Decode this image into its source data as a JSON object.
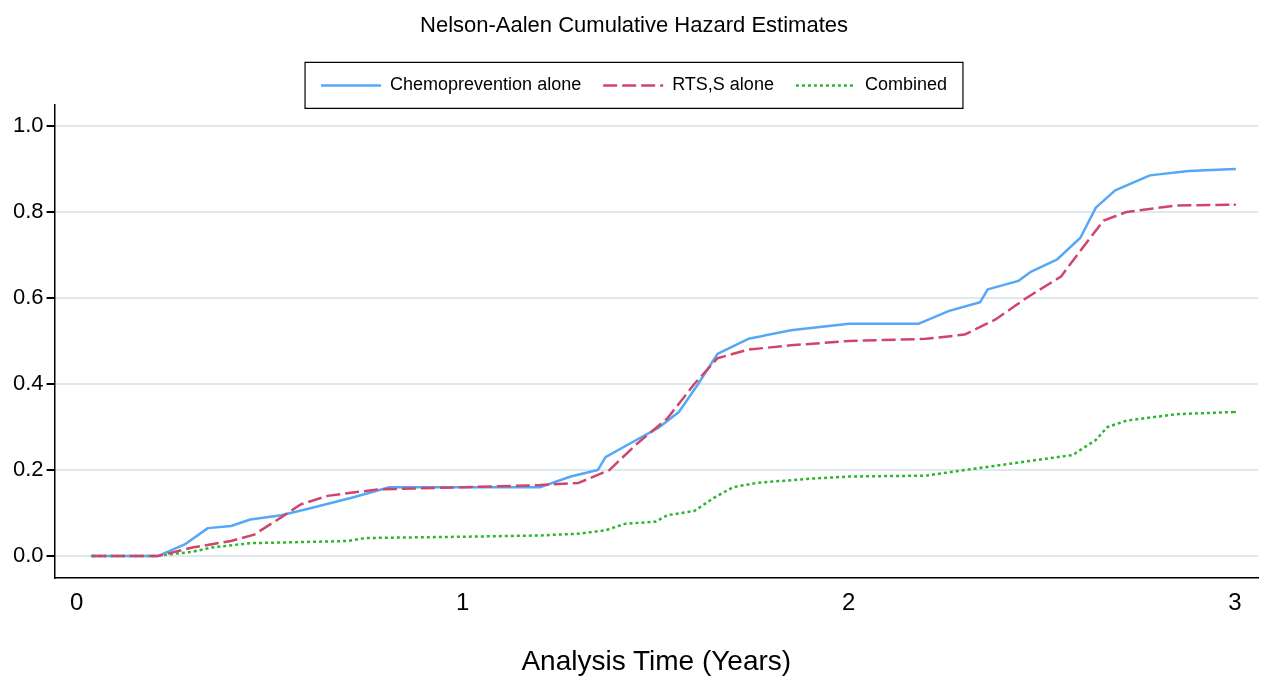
{
  "chart_data": {
    "type": "line",
    "title": "Nelson-Aalen Cumulative Hazard Estimates",
    "xlabel": "Analysis Time (Years)",
    "xlim": [
      -0.057,
      3.06
    ],
    "xticks": [
      0,
      1,
      2,
      3
    ],
    "ylim": [
      -0.05,
      1.05
    ],
    "yticks": [
      {
        "value": 0,
        "label": "0.0"
      },
      {
        "value": 0.2,
        "label": "0.2"
      },
      {
        "value": 0.4,
        "label": "0.4"
      },
      {
        "value": 0.6,
        "label": "0.6"
      },
      {
        "value": 0.8,
        "label": "0.8"
      },
      {
        "value": 1,
        "label": "1.0"
      }
    ],
    "grid": "y",
    "legend": "top",
    "marker": "none",
    "series": [
      {
        "name": "Chemoprevention alone",
        "color": "#55a8f8",
        "line_style": "solid",
        "x": [
          0.04,
          0.21,
          0.28,
          0.34,
          0.4,
          0.45,
          0.53,
          0.6,
          0.71,
          0.81,
          1.0,
          1.2,
          1.28,
          1.35,
          1.37,
          1.43,
          1.51,
          1.56,
          1.61,
          1.66,
          1.74,
          1.85,
          2.0,
          2.18,
          2.26,
          2.34,
          2.36,
          2.44,
          2.47,
          2.54,
          2.6,
          2.64,
          2.69,
          2.78,
          2.88,
          3.0
        ],
        "values": [
          0,
          0,
          0.027,
          0.065,
          0.07,
          0.085,
          0.095,
          0.11,
          0.135,
          0.16,
          0.16,
          0.16,
          0.185,
          0.2,
          0.23,
          0.26,
          0.3,
          0.335,
          0.4,
          0.47,
          0.505,
          0.525,
          0.54,
          0.54,
          0.57,
          0.59,
          0.62,
          0.64,
          0.66,
          0.69,
          0.74,
          0.81,
          0.85,
          0.885,
          0.895,
          0.9
        ]
      },
      {
        "name": "RTS,S alone",
        "color": "#d0456a",
        "line_style": "dashed",
        "x": [
          0.04,
          0.21,
          0.3,
          0.4,
          0.46,
          0.53,
          0.58,
          0.65,
          0.78,
          1.0,
          1.2,
          1.3,
          1.38,
          1.45,
          1.53,
          1.6,
          1.66,
          1.74,
          1.85,
          2.0,
          2.2,
          2.3,
          2.38,
          2.46,
          2.55,
          2.6,
          2.66,
          2.72,
          2.85,
          3.0
        ],
        "values": [
          0,
          0,
          0.02,
          0.035,
          0.05,
          0.09,
          0.12,
          0.14,
          0.155,
          0.16,
          0.165,
          0.17,
          0.2,
          0.26,
          0.32,
          0.4,
          0.46,
          0.48,
          0.49,
          0.5,
          0.505,
          0.515,
          0.55,
          0.6,
          0.65,
          0.71,
          0.78,
          0.8,
          0.815,
          0.817
        ]
      },
      {
        "name": "Combined",
        "color": "#2db52d",
        "line_style": "dotted",
        "x": [
          0.04,
          0.2,
          0.3,
          0.35,
          0.45,
          0.7,
          0.75,
          1.0,
          1.2,
          1.3,
          1.37,
          1.42,
          1.5,
          1.53,
          1.6,
          1.65,
          1.7,
          1.76,
          1.9,
          2.0,
          2.2,
          2.3,
          2.38,
          2.5,
          2.58,
          2.64,
          2.67,
          2.72,
          2.85,
          3.0
        ],
        "values": [
          0,
          0,
          0.01,
          0.02,
          0.03,
          0.035,
          0.042,
          0.045,
          0.048,
          0.052,
          0.06,
          0.075,
          0.08,
          0.095,
          0.105,
          0.135,
          0.16,
          0.17,
          0.18,
          0.185,
          0.187,
          0.2,
          0.21,
          0.225,
          0.235,
          0.27,
          0.3,
          0.315,
          0.33,
          0.335
        ]
      }
    ]
  }
}
